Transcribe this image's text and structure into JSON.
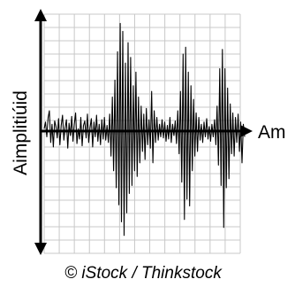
{
  "chart_data": {
    "type": "line",
    "title": "",
    "xlabel": "Am",
    "ylabel": "Aimplitiúid",
    "grid": true,
    "ylim": [
      -1,
      1
    ],
    "line_color": "#000000",
    "grid_color": "#c8c8c8",
    "series": [
      {
        "values": [
          0.02,
          0.08,
          -0.05,
          0.12,
          0.18,
          -0.1,
          0.06,
          -0.14,
          0.09,
          0.04,
          -0.06,
          0.11,
          -0.12,
          0.05,
          0.14,
          -0.08,
          0.03,
          0.1,
          -0.15,
          0.07,
          -0.04,
          0.13,
          -0.09,
          0.06,
          0.16,
          -0.11,
          0.02,
          -0.07,
          0.12,
          -0.13,
          0.05,
          0.09,
          -0.06,
          0.15,
          -0.1,
          0.03,
          0.11,
          -0.14,
          0.08,
          -0.05,
          0.14,
          -0.09,
          0.06,
          -0.12,
          0.1,
          -0.07,
          0.12,
          -0.08,
          0.05,
          -0.1,
          0.15,
          -0.22,
          0.3,
          -0.35,
          0.45,
          -0.5,
          0.7,
          -0.65,
          0.95,
          -0.8,
          0.88,
          -0.92,
          0.6,
          -0.72,
          0.78,
          -0.55,
          0.65,
          -0.48,
          0.4,
          -0.35,
          0.52,
          -0.4,
          0.3,
          -0.28,
          0.22,
          -0.18,
          0.15,
          -0.25,
          0.2,
          -0.12,
          0.1,
          -0.15,
          0.35,
          -0.28,
          0.18,
          -0.1,
          0.12,
          -0.08,
          0.06,
          -0.05,
          0.1,
          -0.06,
          0.08,
          -0.09,
          0.05,
          -0.07,
          0.12,
          -0.1,
          0.06,
          -0.04,
          0.09,
          -0.11,
          0.18,
          -0.2,
          0.35,
          -0.45,
          0.68,
          -0.78,
          0.74,
          -0.6,
          0.52,
          -0.66,
          0.4,
          -0.35,
          0.28,
          -0.22,
          0.16,
          -0.18,
          0.12,
          -0.08,
          0.06,
          -0.1,
          0.08,
          -0.05,
          0.11,
          -0.07,
          0.04,
          -0.09,
          0.06,
          -0.05,
          0.1,
          -0.12,
          0.22,
          -0.3,
          0.55,
          -0.48,
          0.72,
          -0.85,
          0.55,
          -0.5,
          0.38,
          -0.42,
          0.24,
          -0.2,
          0.16,
          -0.22,
          0.12,
          -0.1,
          0.15,
          -0.18,
          0.08,
          -0.28,
          0.06,
          -0.05
        ]
      }
    ]
  },
  "credit": "© iStock / Thinkstock"
}
